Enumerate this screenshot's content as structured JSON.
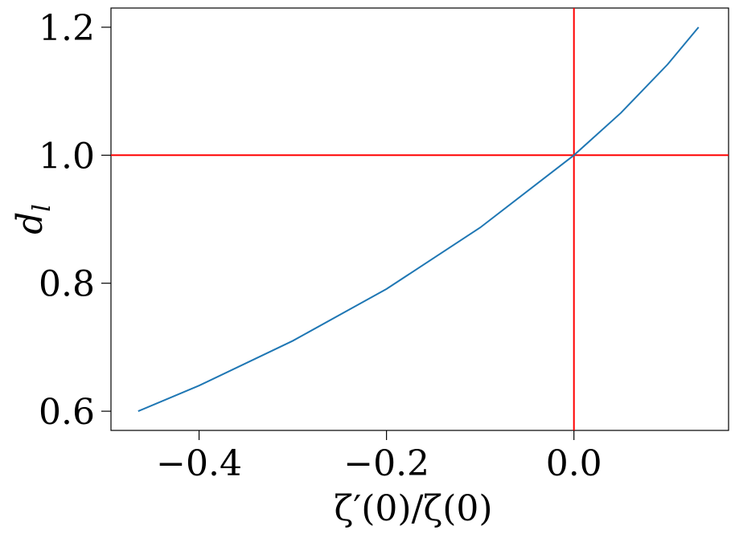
{
  "chart_data": {
    "type": "line",
    "xlabel": "ζ′(0)/ζ(0)",
    "ylabel": "d",
    "ylabel_subscript": "l",
    "x": [
      -0.465,
      -0.4,
      -0.3,
      -0.2,
      -0.1,
      0.0,
      0.05,
      0.1,
      0.133
    ],
    "series": [
      {
        "color": "#1f77b4",
        "values": [
          0.6,
          0.64,
          0.71,
          0.791,
          0.887,
          1.0,
          1.066,
          1.142,
          1.2
        ]
      }
    ],
    "reference_lines": {
      "x": 0.0,
      "y": 1.0,
      "color": "#ff0000"
    },
    "xlim": [
      -0.494,
      0.165
    ],
    "ylim": [
      0.57,
      1.23
    ],
    "xticks": [
      {
        "value": -0.4,
        "label": "−0.4"
      },
      {
        "value": -0.2,
        "label": "−0.2"
      },
      {
        "value": 0.0,
        "label": "0.0"
      }
    ],
    "yticks": [
      {
        "value": 0.6,
        "label": "0.6"
      },
      {
        "value": 0.8,
        "label": "0.8"
      },
      {
        "value": 1.0,
        "label": "1.0"
      },
      {
        "value": 1.2,
        "label": "1.2"
      }
    ]
  }
}
